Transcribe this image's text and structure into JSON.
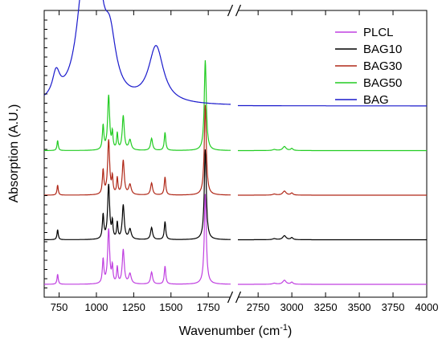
{
  "chart_data": {
    "type": "line",
    "title": "",
    "xlabel": "Wavenumber (cm",
    "xlabel_sup": "-1",
    "xlabel_close": ")",
    "ylabel": "Absorption (A.U.)",
    "x_axis_broken": true,
    "x_segments": [
      {
        "range": [
          650,
          1900
        ],
        "ticks": [
          750,
          1000,
          1250,
          1500,
          1750
        ]
      },
      {
        "range": [
          2600,
          4000
        ],
        "ticks": [
          2750,
          3000,
          3250,
          3500,
          3750,
          4000
        ]
      }
    ],
    "y_ticks_labeled": false,
    "legend_placement": "top-right",
    "series": [
      {
        "name": "PLCL",
        "color": "#c040e0",
        "offset": 0,
        "peaks": [
          [
            740,
            0.05,
            5
          ],
          [
            1045,
            0.12,
            6
          ],
          [
            1082,
            0.27,
            8
          ],
          [
            1107,
            0.08,
            5
          ],
          [
            1140,
            0.08,
            5
          ],
          [
            1180,
            0.17,
            8
          ],
          [
            1225,
            0.05,
            10
          ],
          [
            1370,
            0.06,
            8
          ],
          [
            1460,
            0.09,
            6
          ],
          [
            1730,
            0.45,
            8
          ],
          [
            2870,
            0.005,
            15
          ],
          [
            2945,
            0.02,
            15
          ],
          [
            3000,
            0.01,
            10
          ]
        ]
      },
      {
        "name": "BAG10",
        "color": "#000000",
        "offset": 1,
        "peaks": [
          [
            740,
            0.05,
            5
          ],
          [
            1045,
            0.12,
            6
          ],
          [
            1082,
            0.27,
            8
          ],
          [
            1107,
            0.08,
            5
          ],
          [
            1140,
            0.08,
            5
          ],
          [
            1180,
            0.17,
            8
          ],
          [
            1225,
            0.05,
            10
          ],
          [
            1370,
            0.06,
            8
          ],
          [
            1460,
            0.09,
            6
          ],
          [
            1730,
            0.45,
            8
          ],
          [
            2870,
            0.005,
            15
          ],
          [
            2945,
            0.02,
            15
          ],
          [
            3000,
            0.01,
            10
          ]
        ]
      },
      {
        "name": "BAG30",
        "color": "#b02818",
        "offset": 2,
        "peaks": [
          [
            740,
            0.05,
            5
          ],
          [
            1045,
            0.12,
            6
          ],
          [
            1082,
            0.27,
            8
          ],
          [
            1107,
            0.08,
            5
          ],
          [
            1140,
            0.08,
            5
          ],
          [
            1180,
            0.17,
            8
          ],
          [
            1225,
            0.05,
            10
          ],
          [
            1370,
            0.06,
            8
          ],
          [
            1460,
            0.09,
            6
          ],
          [
            1730,
            0.45,
            8
          ],
          [
            2870,
            0.005,
            15
          ],
          [
            2945,
            0.02,
            15
          ],
          [
            3000,
            0.01,
            10
          ]
        ]
      },
      {
        "name": "BAG50",
        "color": "#22cc22",
        "offset": 3,
        "peaks": [
          [
            740,
            0.05,
            5
          ],
          [
            1045,
            0.12,
            6
          ],
          [
            1082,
            0.27,
            8
          ],
          [
            1107,
            0.08,
            5
          ],
          [
            1140,
            0.08,
            5
          ],
          [
            1180,
            0.17,
            8
          ],
          [
            1225,
            0.05,
            10
          ],
          [
            1370,
            0.06,
            8
          ],
          [
            1460,
            0.09,
            6
          ],
          [
            1730,
            0.45,
            8
          ],
          [
            2870,
            0.005,
            15
          ],
          [
            2945,
            0.02,
            15
          ],
          [
            3000,
            0.01,
            10
          ]
        ]
      },
      {
        "name": "BAG",
        "color": "#1a1acc",
        "offset": 4,
        "peaks": [
          [
            730,
            0.12,
            30
          ],
          [
            920,
            0.6,
            60
          ],
          [
            1010,
            0.45,
            40
          ],
          [
            1090,
            0.28,
            50
          ],
          [
            1400,
            0.28,
            60
          ]
        ]
      }
    ]
  }
}
